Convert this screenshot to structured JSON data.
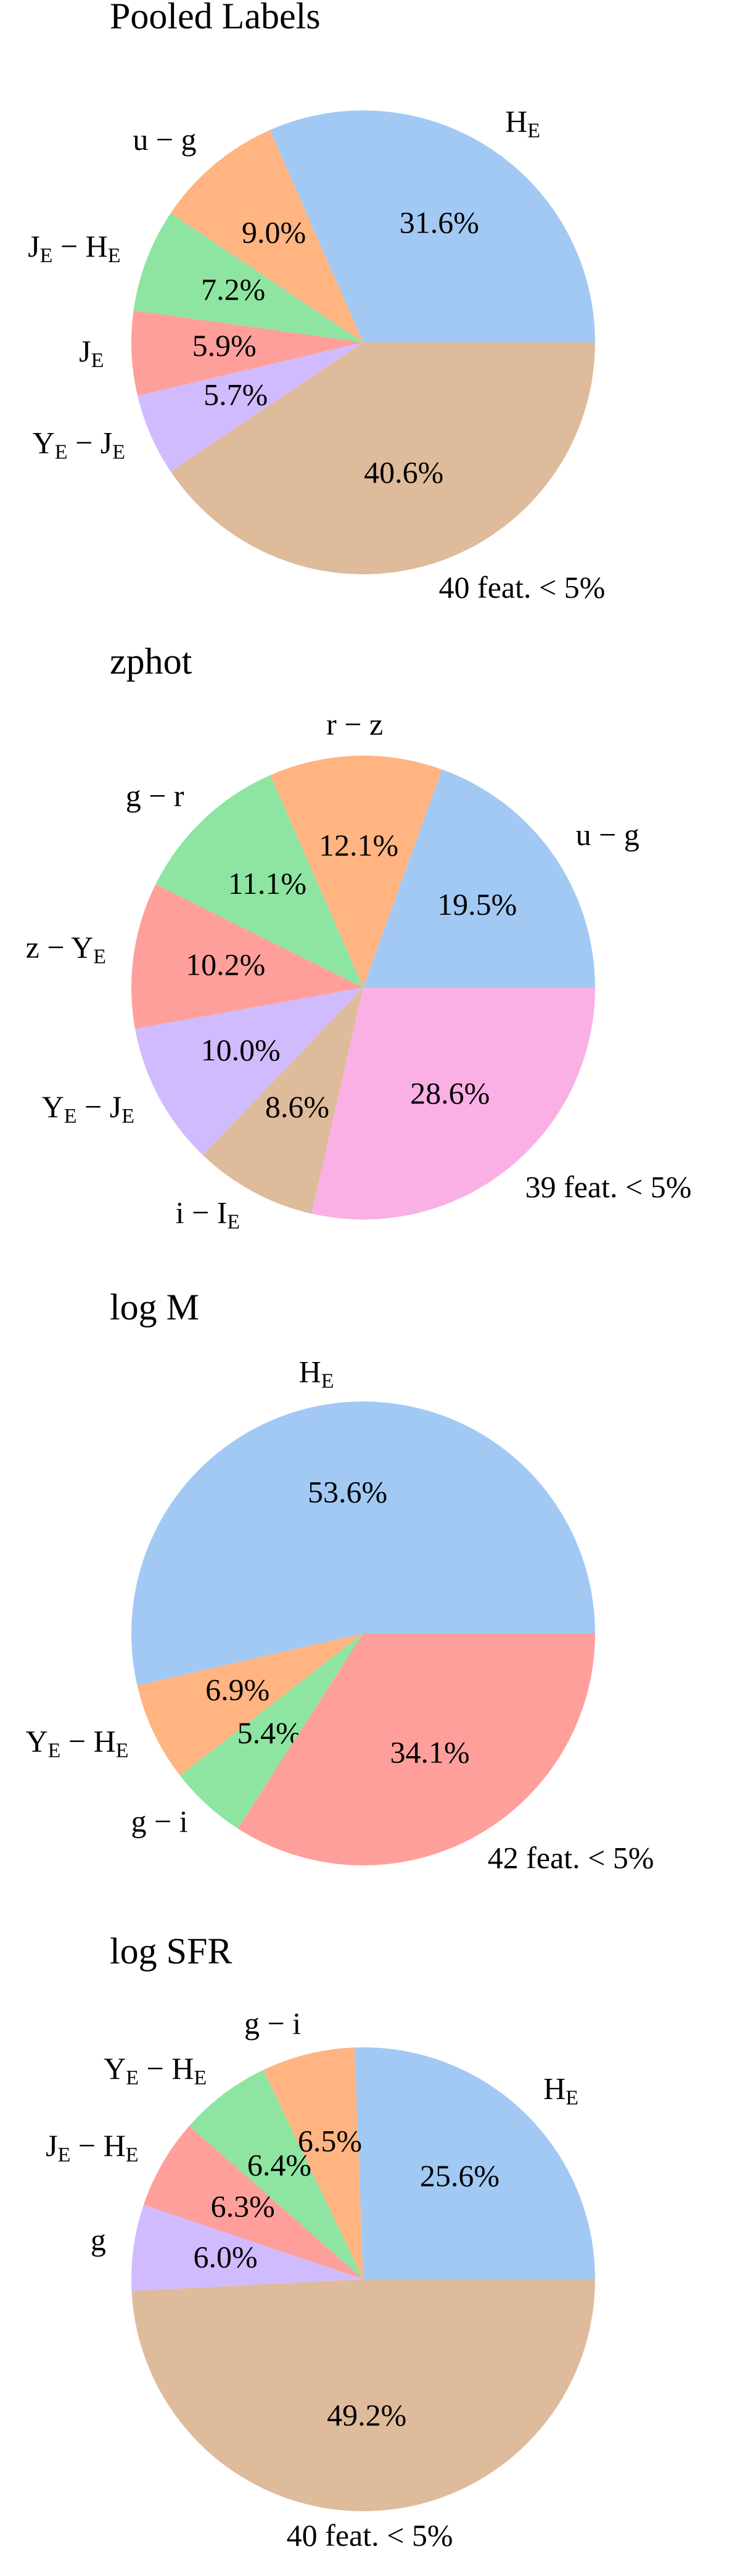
{
  "chart_data": [
    {
      "type": "pie",
      "title": "Pooled Labels",
      "categories": [
        "HE",
        "u − g",
        "JE − HE",
        "JE",
        "YE − JE",
        "40 feat. < 5%"
      ],
      "values": [
        31.6,
        9.0,
        7.2,
        5.9,
        5.7,
        40.6
      ],
      "value_labels": [
        "31.6%",
        "9.0%",
        "7.2%",
        "5.9%",
        "5.7%",
        "40.6%"
      ],
      "colors": [
        "#a1c9f4",
        "#ffb482",
        "#8de5a1",
        "#ff9f9b",
        "#d0bbff",
        "#debb9b"
      ]
    },
    {
      "type": "pie",
      "title": "zphot",
      "categories": [
        "u − g",
        "r − z",
        "g − r",
        "z − YE",
        "YE − JE",
        "i − IE",
        "39 feat. < 5%"
      ],
      "values": [
        19.5,
        12.1,
        11.1,
        10.2,
        10.0,
        8.6,
        28.6
      ],
      "value_labels": [
        "19.5%",
        "12.1%",
        "11.1%",
        "10.2%",
        "10.0%",
        "8.6%",
        "28.6%"
      ],
      "colors": [
        "#a1c9f4",
        "#ffb482",
        "#8de5a1",
        "#ff9f9b",
        "#d0bbff",
        "#debb9b",
        "#fab0e4"
      ]
    },
    {
      "type": "pie",
      "title": "log M",
      "categories": [
        "HE",
        "YE − HE",
        "g − i",
        "42 feat. < 5%"
      ],
      "values": [
        53.6,
        6.9,
        5.4,
        34.1
      ],
      "value_labels": [
        "53.6%",
        "6.9%",
        "5.4%",
        "34.1%"
      ],
      "colors": [
        "#a1c9f4",
        "#ffb482",
        "#8de5a1",
        "#ff9f9b"
      ]
    },
    {
      "type": "pie",
      "title": "log SFR",
      "categories": [
        "HE",
        "g − i",
        "YE − HE",
        "JE − HE",
        "g",
        "40 feat. < 5%"
      ],
      "values": [
        25.6,
        6.5,
        6.4,
        6.3,
        6.0,
        49.2
      ],
      "value_labels": [
        "25.6%",
        "6.5%",
        "6.4%",
        "6.3%",
        "6.0%",
        "49.2%"
      ],
      "colors": [
        "#a1c9f4",
        "#ffb482",
        "#8de5a1",
        "#ff9f9b",
        "#d0bbff",
        "#debb9b"
      ]
    }
  ]
}
